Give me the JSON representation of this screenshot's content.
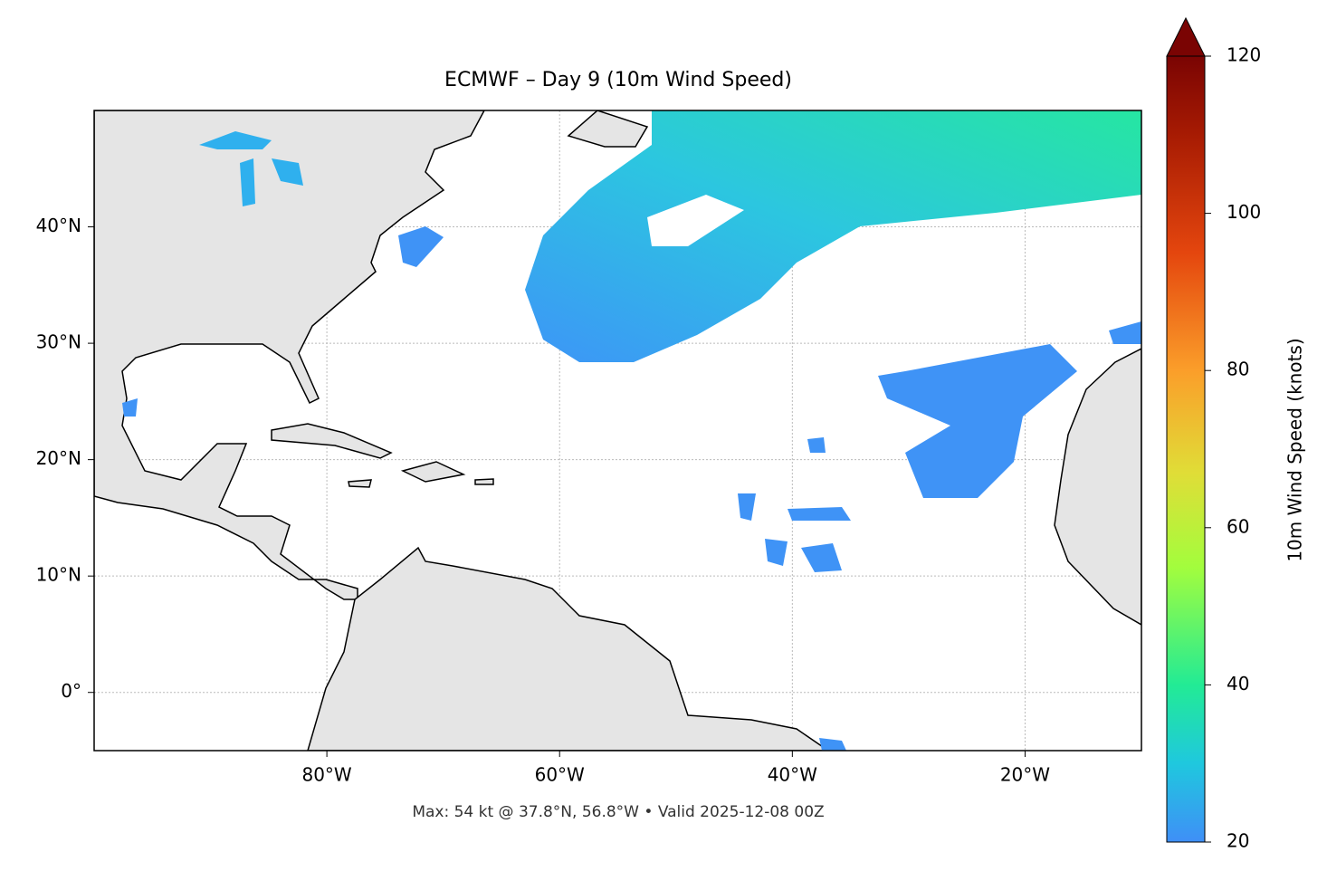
{
  "chart_data": {
    "type": "map",
    "title": "ECMWF – Day 9 (10m Wind Speed)",
    "annotation": "Max: 54 kt @ 37.8°N, 56.8°W • Valid 2025-12-08 00Z",
    "xlim": [
      -100,
      -10
    ],
    "ylim": [
      -5,
      50
    ],
    "xticks": [
      {
        "value": -80,
        "label": "80°W"
      },
      {
        "value": -60,
        "label": "60°W"
      },
      {
        "value": -40,
        "label": "40°W"
      },
      {
        "value": -20,
        "label": "20°W"
      }
    ],
    "yticks": [
      {
        "value": 0,
        "label": "0°"
      },
      {
        "value": 10,
        "label": "10°N"
      },
      {
        "value": 20,
        "label": "20°N"
      },
      {
        "value": 30,
        "label": "30°N"
      },
      {
        "value": 40,
        "label": "40°N"
      }
    ],
    "grid": true,
    "colorbar": {
      "label": "10m Wind Speed (knots)",
      "lim": [
        20,
        120
      ],
      "ticks": [
        20,
        40,
        60,
        80,
        100,
        120
      ]
    }
  }
}
